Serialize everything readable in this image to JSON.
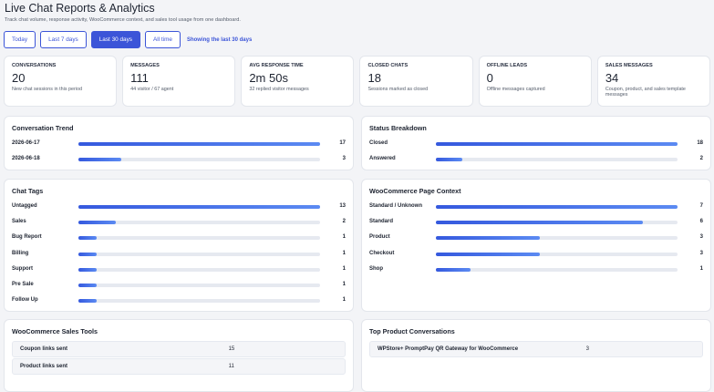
{
  "header": {
    "title": "Live Chat Reports & Analytics",
    "subtitle": "Track chat volume, response activity, WooCommerce context, and sales tool usage from one dashboard."
  },
  "filters": {
    "buttons": [
      "Today",
      "Last 7 days",
      "Last 30 days",
      "All time"
    ],
    "active": 2,
    "status": "Showing the last 30 days"
  },
  "stats": [
    {
      "label": "CONVERSATIONS",
      "value": "20",
      "note": "New chat sessions in this period"
    },
    {
      "label": "MESSAGES",
      "value": "111",
      "note": "44 visitor / 67 agent"
    },
    {
      "label": "AVG RESPONSE TIME",
      "value": "2m 50s",
      "note": "32 replied visitor messages"
    },
    {
      "label": "CLOSED CHATS",
      "value": "18",
      "note": "Sessions marked as closed"
    },
    {
      "label": "OFFLINE LEADS",
      "value": "0",
      "note": "Offline messages captured"
    },
    {
      "label": "SALES MESSAGES",
      "value": "34",
      "note": "Coupon, product, and sales template messages"
    }
  ],
  "panels": [
    {
      "title": "Conversation Trend",
      "rows": [
        {
          "label": "2026-06-17",
          "value": 17
        },
        {
          "label": "2026-06-18",
          "value": 3
        }
      ]
    },
    {
      "title": "Status Breakdown",
      "rows": [
        {
          "label": "Closed",
          "value": 18
        },
        {
          "label": "Answered",
          "value": 2
        }
      ]
    },
    {
      "title": "Chat Tags",
      "rows": [
        {
          "label": "Untagged",
          "value": 13
        },
        {
          "label": "Sales",
          "value": 2
        },
        {
          "label": "Bug Report",
          "value": 1
        },
        {
          "label": "Billing",
          "value": 1
        },
        {
          "label": "Support",
          "value": 1
        },
        {
          "label": "Pre Sale",
          "value": 1
        },
        {
          "label": "Follow Up",
          "value": 1
        }
      ]
    },
    {
      "title": "WooCommerce Page Context",
      "rows": [
        {
          "label": "Standard / Unknown",
          "value": 7
        },
        {
          "label": "Standard",
          "value": 6
        },
        {
          "label": "Product",
          "value": 3
        },
        {
          "label": "Checkout",
          "value": 3
        },
        {
          "label": "Shop",
          "value": 1
        }
      ]
    }
  ],
  "tables": [
    {
      "title": "WooCommerce Sales Tools",
      "rows": [
        {
          "label": "Coupon links sent",
          "value": 15
        },
        {
          "label": "Product links sent",
          "value": 11
        }
      ]
    },
    {
      "title": "Top Product Conversations",
      "rows": [
        {
          "label": "WPStore+ PromptPay QR Gateway for WooCommerce",
          "value": 3
        }
      ]
    }
  ]
}
